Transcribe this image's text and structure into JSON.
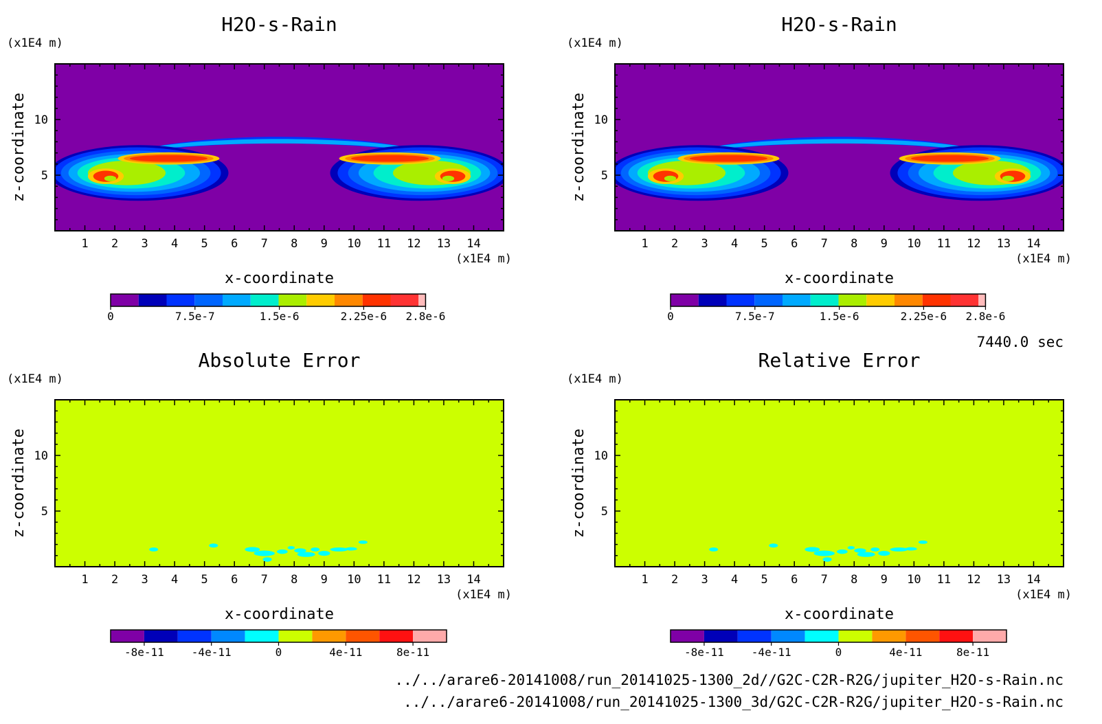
{
  "time_label": "7440.0 sec",
  "files": [
    "../../arare6-20141008/run_20141025-1300_2d//G2C-C2R-R2G/jupiter_H2O-s-Rain.nc",
    "../../arare6-20141008/run_20141025-1300_3d/G2C-C2R-R2G/jupiter_H2O-s-Rain.nc"
  ],
  "chart_data": [
    {
      "id": "p1",
      "type": "heatmap",
      "title": "H2O-s-Rain",
      "xlabel": "x-coordinate",
      "ylabel": "z-coordinate",
      "x_unit": "(x1E4 m)",
      "y_unit": "(x1E4 m)",
      "xlim": [
        0,
        15
      ],
      "ylim": [
        0,
        15
      ],
      "x_ticks": [
        1,
        2,
        3,
        4,
        5,
        6,
        7,
        8,
        9,
        10,
        11,
        12,
        13,
        14
      ],
      "y_ticks": [
        5,
        10
      ],
      "field": "rain",
      "colorbar": {
        "min": 0,
        "max": 2.8e-06,
        "colors": [
          "#7f00a6",
          "#0000b8",
          "#0033ff",
          "#0066ff",
          "#00aaff",
          "#00eecc",
          "#aaee00",
          "#ffcc00",
          "#ff8800",
          "#ff3300",
          "#ff3333",
          "#ffbbbb"
        ],
        "tick_values": [
          0,
          7.5e-07,
          1.5e-06,
          2.25e-06,
          2.8e-06
        ],
        "tick_labels": [
          "0",
          "7.5e-7",
          "1.5e-6",
          "2.25e-6",
          "2.8e-6"
        ]
      }
    },
    {
      "id": "p2",
      "type": "heatmap",
      "title": "H2O-s-Rain",
      "xlabel": "x-coordinate",
      "ylabel": "z-coordinate",
      "x_unit": "(x1E4 m)",
      "y_unit": "(x1E4 m)",
      "xlim": [
        0,
        15
      ],
      "ylim": [
        0,
        15
      ],
      "x_ticks": [
        1,
        2,
        3,
        4,
        5,
        6,
        7,
        8,
        9,
        10,
        11,
        12,
        13,
        14
      ],
      "y_ticks": [
        5,
        10
      ],
      "field": "rain",
      "colorbar": {
        "min": 0,
        "max": 2.8e-06,
        "colors": [
          "#7f00a6",
          "#0000b8",
          "#0033ff",
          "#0066ff",
          "#00aaff",
          "#00eecc",
          "#aaee00",
          "#ffcc00",
          "#ff8800",
          "#ff3300",
          "#ff3333",
          "#ffbbbb"
        ],
        "tick_values": [
          0,
          7.5e-07,
          1.5e-06,
          2.25e-06,
          2.8e-06
        ],
        "tick_labels": [
          "0",
          "7.5e-7",
          "1.5e-6",
          "2.25e-6",
          "2.8e-6"
        ]
      }
    },
    {
      "id": "p3",
      "type": "heatmap",
      "title": "Absolute Error",
      "xlabel": "x-coordinate",
      "ylabel": "z-coordinate",
      "x_unit": "(x1E4 m)",
      "y_unit": "(x1E4 m)",
      "xlim": [
        0,
        15
      ],
      "ylim": [
        0,
        15
      ],
      "x_ticks": [
        1,
        2,
        3,
        4,
        5,
        6,
        7,
        8,
        9,
        10,
        11,
        12,
        13,
        14
      ],
      "y_ticks": [
        5,
        10
      ],
      "field": "error",
      "colorbar": {
        "min": -1e-10,
        "max": 1e-10,
        "colors": [
          "#7f00a6",
          "#0000b8",
          "#0033ff",
          "#0088ff",
          "#00ffff",
          "#ccff00",
          "#ff9900",
          "#ff5500",
          "#ff1111",
          "#ffaaaa"
        ],
        "tick_values": [
          -8e-11,
          -4e-11,
          0,
          4e-11,
          8e-11
        ],
        "tick_labels": [
          "-8e-11",
          "-4e-11",
          "0",
          "4e-11",
          "8e-11"
        ]
      }
    },
    {
      "id": "p4",
      "type": "heatmap",
      "title": "Relative Error",
      "xlabel": "x-coordinate",
      "ylabel": "z-coordinate",
      "x_unit": "(x1E4 m)",
      "y_unit": "(x1E4 m)",
      "xlim": [
        0,
        15
      ],
      "ylim": [
        0,
        15
      ],
      "x_ticks": [
        1,
        2,
        3,
        4,
        5,
        6,
        7,
        8,
        9,
        10,
        11,
        12,
        13,
        14
      ],
      "y_ticks": [
        5,
        10
      ],
      "field": "error",
      "colorbar": {
        "min": -1e-10,
        "max": 1e-10,
        "colors": [
          "#7f00a6",
          "#0000b8",
          "#0033ff",
          "#0088ff",
          "#00ffff",
          "#ccff00",
          "#ff9900",
          "#ff5500",
          "#ff1111",
          "#ffaaaa"
        ],
        "tick_values": [
          -8e-11,
          -4e-11,
          0,
          4e-11,
          8e-11
        ],
        "tick_labels": [
          "-8e-11",
          "-4e-11",
          "0",
          "4e-11",
          "8e-11"
        ]
      }
    }
  ]
}
